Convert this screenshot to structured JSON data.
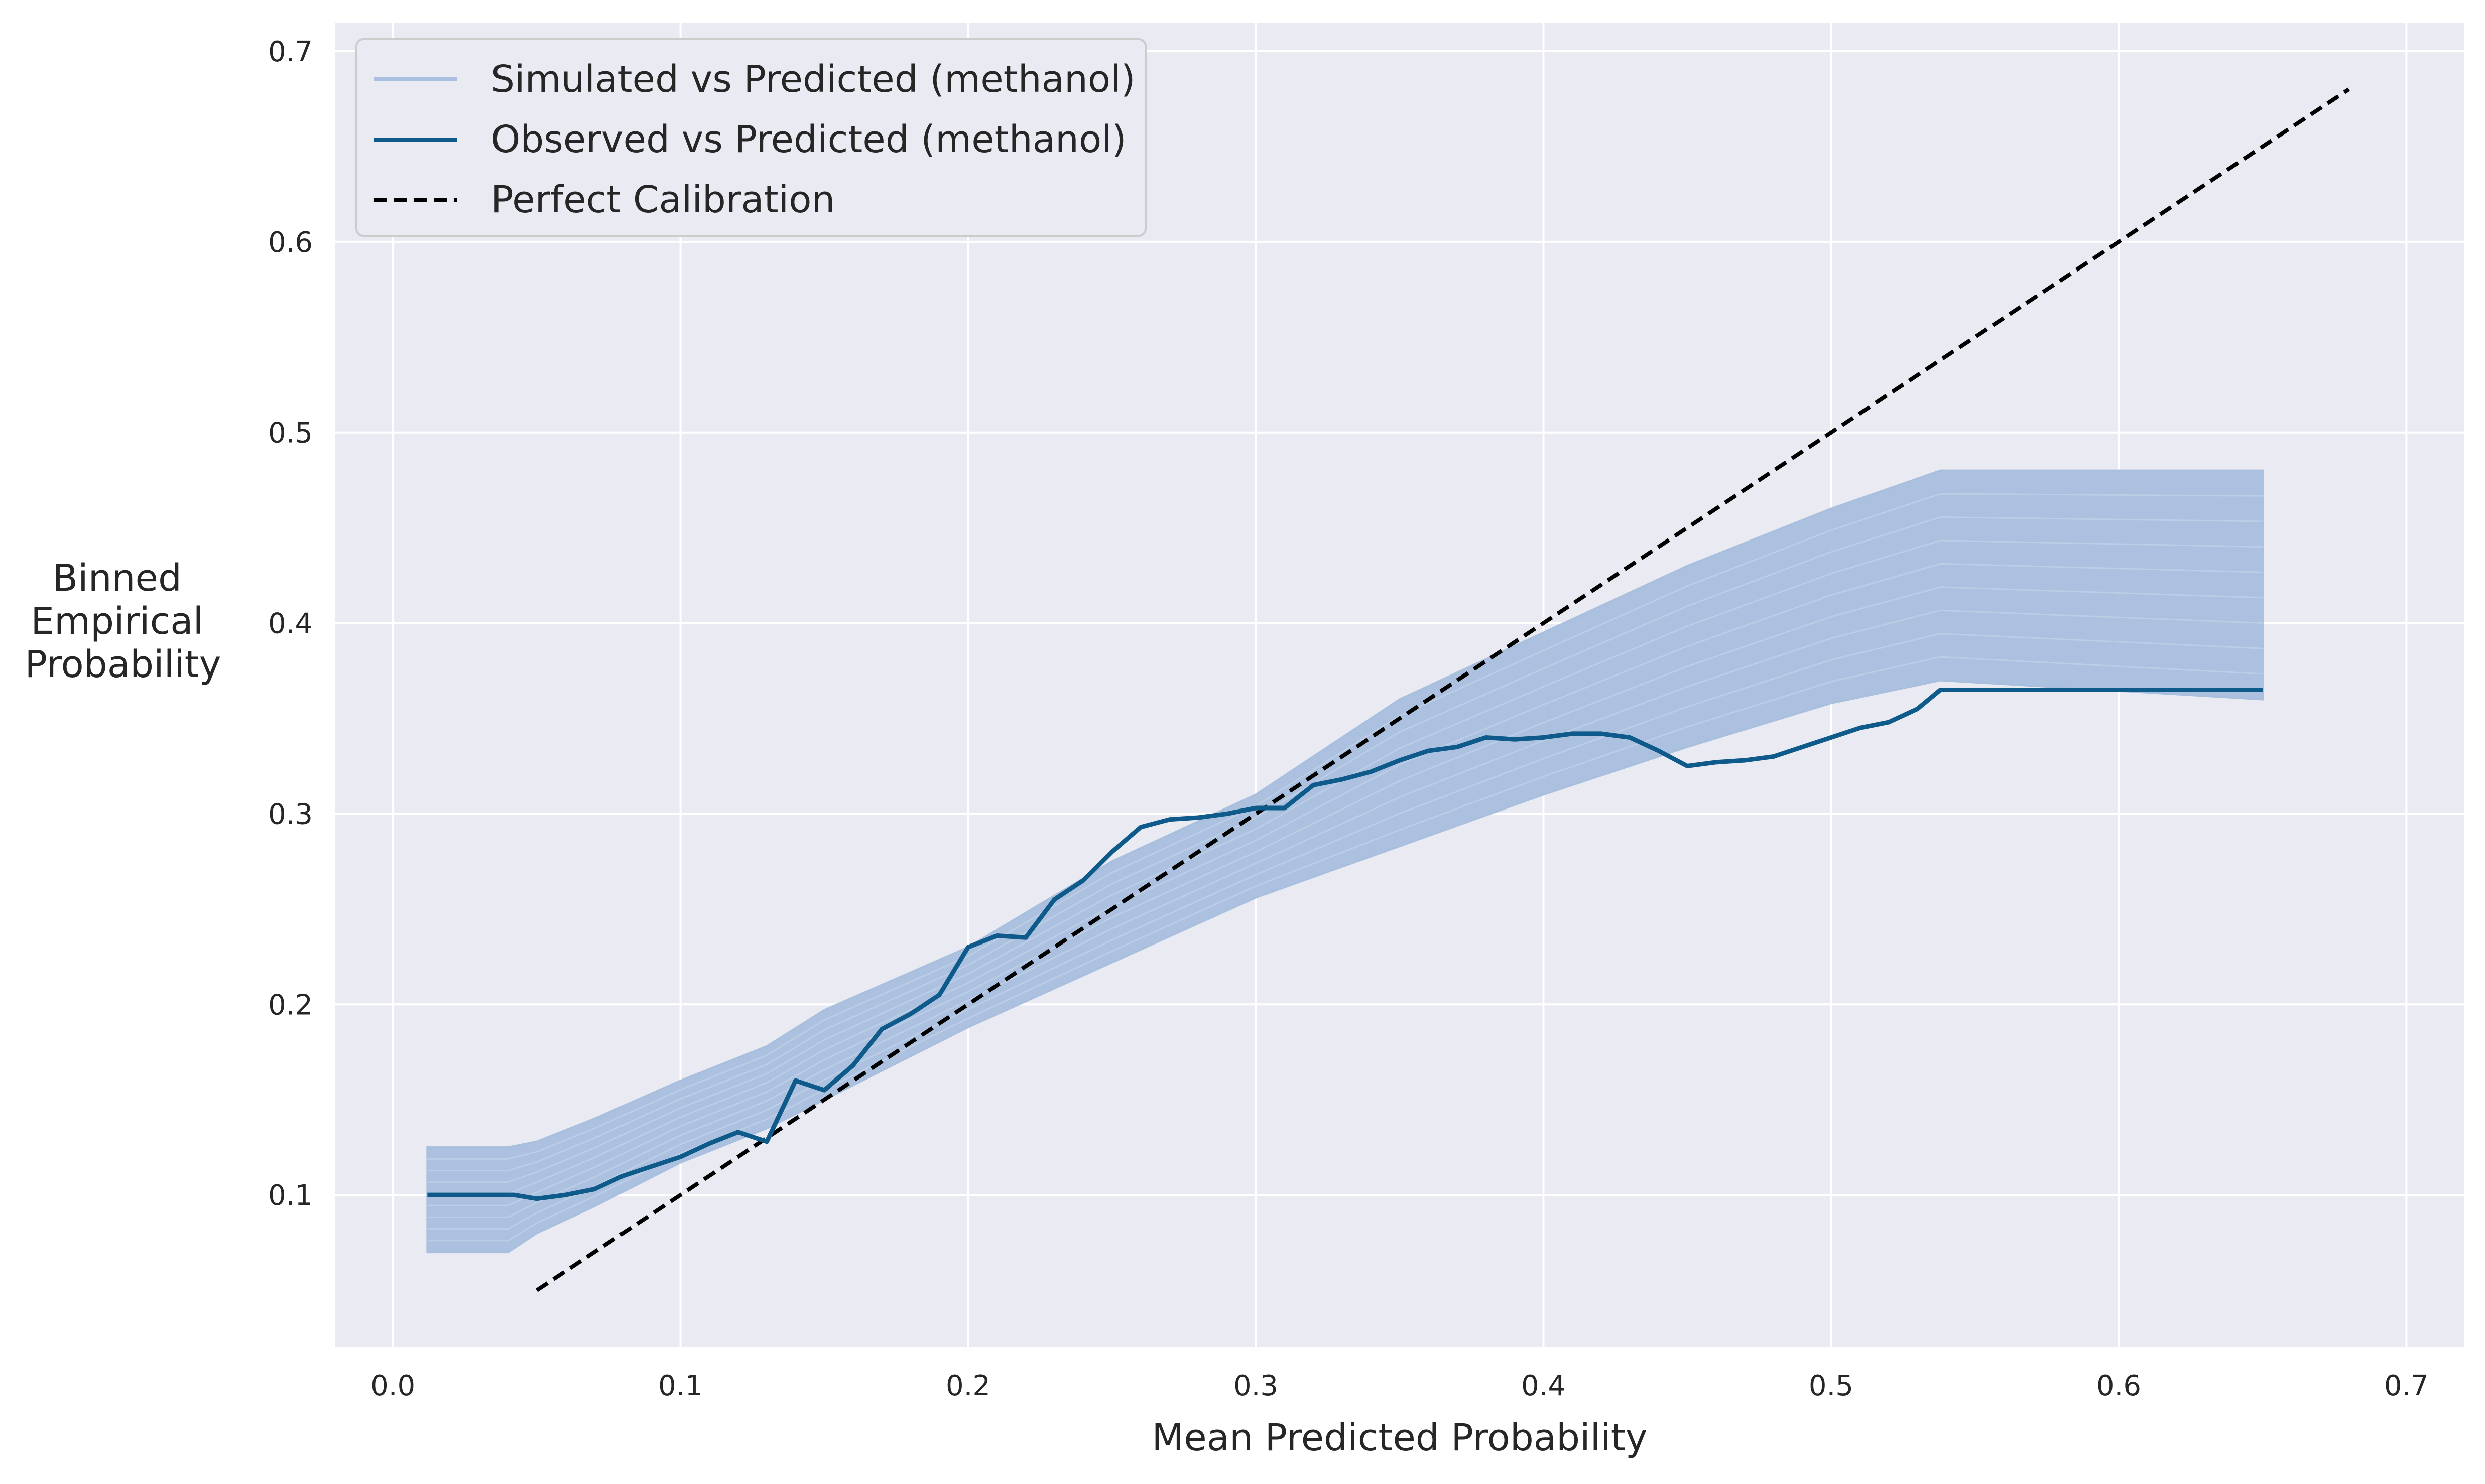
{
  "chart_data": {
    "type": "line",
    "title": "",
    "xlabel": "Mean Predicted Probability",
    "ylabel_lines": [
      "Binned",
      "Empirical",
      "Probability"
    ],
    "xlim": [
      -0.02,
      0.72
    ],
    "ylim": [
      0.02,
      0.715
    ],
    "xticks": [
      0.0,
      0.1,
      0.2,
      0.3,
      0.4,
      0.5,
      0.6,
      0.7
    ],
    "xtick_labels": [
      "0.0",
      "0.1",
      "0.2",
      "0.3",
      "0.4",
      "0.5",
      "0.6",
      "0.7"
    ],
    "yticks": [
      0.1,
      0.2,
      0.3,
      0.4,
      0.5,
      0.6,
      0.7
    ],
    "ytick_labels": [
      "0.1",
      "0.2",
      "0.3",
      "0.4",
      "0.5",
      "0.6",
      "0.7"
    ],
    "grid": true,
    "legend_position": "upper-left",
    "background": "#eaeaf2",
    "series": [
      {
        "name": "Simulated vs Predicted (methanol)",
        "kind": "band",
        "color": "#a8bfdd",
        "x": [
          0.012,
          0.04,
          0.05,
          0.07,
          0.1,
          0.13,
          0.15,
          0.2,
          0.25,
          0.3,
          0.35,
          0.4,
          0.45,
          0.5,
          0.538,
          0.65
        ],
        "y_lower": [
          0.07,
          0.07,
          0.08,
          0.094,
          0.117,
          0.135,
          0.15,
          0.188,
          0.222,
          0.256,
          0.283,
          0.31,
          0.335,
          0.358,
          0.37,
          0.36
        ],
        "y_upper": [
          0.125,
          0.125,
          0.128,
          0.14,
          0.16,
          0.178,
          0.197,
          0.23,
          0.275,
          0.31,
          0.36,
          0.395,
          0.43,
          0.46,
          0.48,
          0.48
        ]
      },
      {
        "name": "Observed vs Predicted (methanol)",
        "kind": "line",
        "color": "#0e5a8a",
        "x": [
          0.012,
          0.042,
          0.05,
          0.06,
          0.07,
          0.08,
          0.09,
          0.1,
          0.11,
          0.12,
          0.13,
          0.14,
          0.15,
          0.16,
          0.17,
          0.18,
          0.19,
          0.2,
          0.21,
          0.22,
          0.23,
          0.24,
          0.25,
          0.26,
          0.27,
          0.28,
          0.29,
          0.3,
          0.31,
          0.32,
          0.33,
          0.34,
          0.35,
          0.36,
          0.37,
          0.38,
          0.39,
          0.4,
          0.41,
          0.42,
          0.43,
          0.44,
          0.45,
          0.46,
          0.47,
          0.48,
          0.49,
          0.5,
          0.51,
          0.52,
          0.53,
          0.538,
          0.65
        ],
        "y": [
          0.1,
          0.1,
          0.098,
          0.1,
          0.103,
          0.11,
          0.115,
          0.12,
          0.127,
          0.133,
          0.128,
          0.16,
          0.155,
          0.168,
          0.187,
          0.195,
          0.205,
          0.23,
          0.236,
          0.235,
          0.255,
          0.265,
          0.28,
          0.293,
          0.297,
          0.298,
          0.3,
          0.303,
          0.303,
          0.315,
          0.318,
          0.322,
          0.328,
          0.333,
          0.335,
          0.34,
          0.339,
          0.34,
          0.342,
          0.342,
          0.34,
          0.333,
          0.325,
          0.327,
          0.328,
          0.33,
          0.335,
          0.34,
          0.345,
          0.348,
          0.355,
          0.365,
          0.365
        ]
      },
      {
        "name": "Perfect Calibration",
        "kind": "dashed-line",
        "color": "#000000",
        "x": [
          0.05,
          0.68
        ],
        "y": [
          0.05,
          0.68
        ]
      }
    ]
  }
}
